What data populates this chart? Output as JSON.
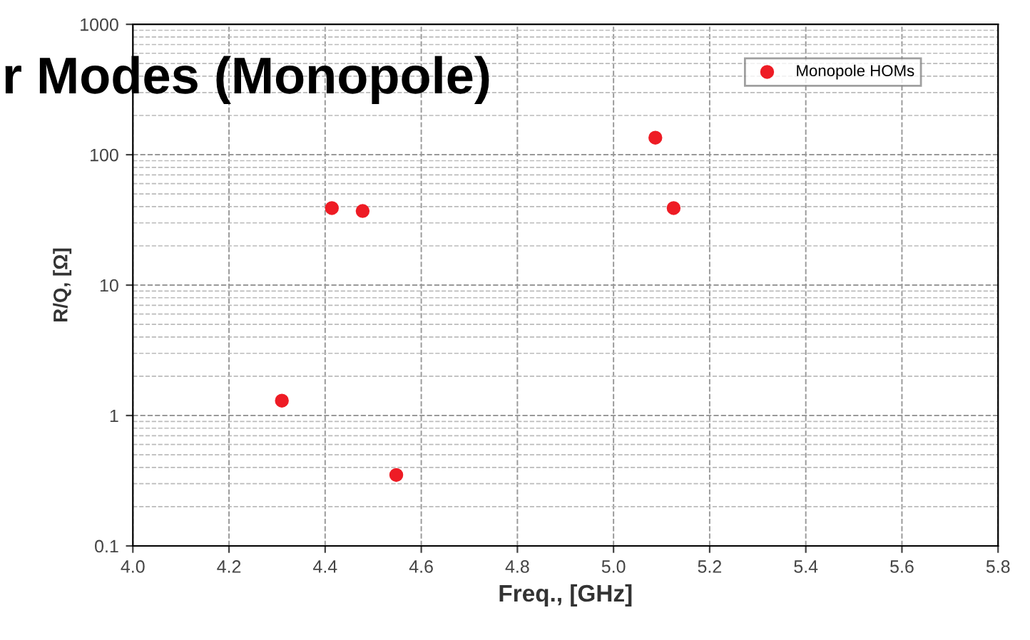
{
  "chart_data": {
    "type": "scatter",
    "title": "r Modes (Monopole)",
    "xlabel": "Freq., [GHz]",
    "ylabel": "R/Q, [Ω]",
    "series": [
      {
        "name": "Monopole HOMs",
        "color": "#ee1c25",
        "x": [
          4.31,
          4.414,
          4.478,
          4.548,
          5.087,
          5.125
        ],
        "values": [
          1.3,
          39,
          37,
          0.35,
          135,
          39
        ]
      }
    ],
    "log": "y",
    "xlim": [
      4.0,
      5.8
    ],
    "ylim": [
      0.1,
      1000
    ],
    "xticks": [
      {
        "value": 4.0,
        "label": "4.0"
      },
      4.2,
      4.4,
      4.6,
      4.8,
      {
        "value": 5.0,
        "label": "5.0"
      },
      5.2,
      5.4,
      5.6,
      5.8
    ],
    "yticks": [
      0.1,
      1,
      10,
      100,
      1000
    ],
    "grid": true,
    "legend": "top right",
    "marker": "circle"
  }
}
